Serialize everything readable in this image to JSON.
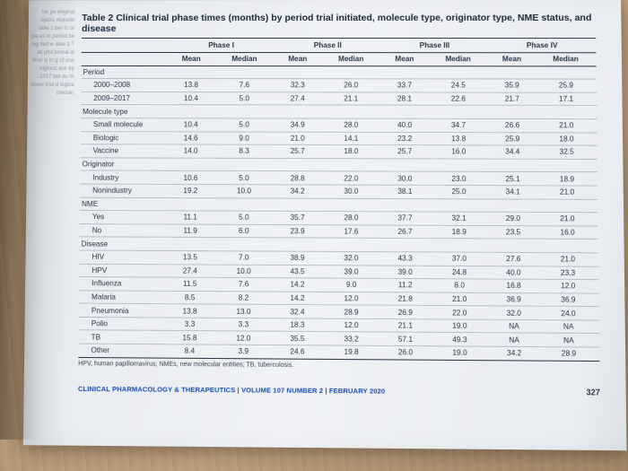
{
  "table": {
    "title": "Table 2 Clinical trial phase times (months) by period trial initiated, molecule type, originator type, NME status, and disease",
    "phase_headers": [
      "Phase I",
      "Phase II",
      "Phase III",
      "Phase IV"
    ],
    "sub_headers": [
      "Mean",
      "Median"
    ],
    "groups": [
      {
        "label": "Period",
        "rows": [
          {
            "label": "2000–2008",
            "vals": [
              "13.8",
              "7.6",
              "32.3",
              "26.0",
              "33.7",
              "24.5",
              "35.9",
              "25.9"
            ]
          },
          {
            "label": "2009–2017",
            "vals": [
              "10.4",
              "5.0",
              "27.4",
              "21.1",
              "28.1",
              "22.6",
              "21.7",
              "17.1"
            ]
          }
        ]
      },
      {
        "label": "Molecule type",
        "rows": [
          {
            "label": "Small molecule",
            "vals": [
              "10.4",
              "5.0",
              "34.9",
              "28.0",
              "40.0",
              "34.7",
              "26.6",
              "21.0"
            ]
          },
          {
            "label": "Biologic",
            "vals": [
              "14.6",
              "9.0",
              "21.0",
              "14.1",
              "23.2",
              "13.8",
              "25.9",
              "18.0"
            ]
          },
          {
            "label": "Vaccine",
            "vals": [
              "14.0",
              "8.3",
              "25.7",
              "18.0",
              "25.7",
              "16.0",
              "34.4",
              "32.5"
            ]
          }
        ]
      },
      {
        "label": "Originator",
        "rows": [
          {
            "label": "Industry",
            "vals": [
              "10.6",
              "5.0",
              "28.8",
              "22.0",
              "30.0",
              "23.0",
              "25.1",
              "18.9"
            ]
          },
          {
            "label": "Nonindustry",
            "vals": [
              "19.2",
              "10.0",
              "34.2",
              "30.0",
              "38.1",
              "25.0",
              "34.1",
              "21.0"
            ]
          }
        ]
      },
      {
        "label": "NME",
        "rows": [
          {
            "label": "Yes",
            "vals": [
              "11.1",
              "5.0",
              "35.7",
              "28.0",
              "37.7",
              "32.1",
              "29.0",
              "21.0"
            ]
          },
          {
            "label": "No",
            "vals": [
              "11.9",
              "6.0",
              "23.9",
              "17.6",
              "26.7",
              "18.9",
              "23.5",
              "16.0"
            ]
          }
        ]
      },
      {
        "label": "Disease",
        "rows": [
          {
            "label": "HIV",
            "vals": [
              "13.5",
              "7.0",
              "38.9",
              "32.0",
              "43.3",
              "37.0",
              "27.6",
              "21.0"
            ]
          },
          {
            "label": "HPV",
            "vals": [
              "27.4",
              "10.0",
              "43.5",
              "39.0",
              "39.0",
              "24.8",
              "40.0",
              "23.3"
            ]
          },
          {
            "label": "Influenza",
            "vals": [
              "11.5",
              "7.6",
              "14.2",
              "9.0",
              "11.2",
              "8.0",
              "16.8",
              "12.0"
            ]
          },
          {
            "label": "Malaria",
            "vals": [
              "8.5",
              "8.2",
              "14.2",
              "12.0",
              "21.8",
              "21.0",
              "36.9",
              "36.9"
            ]
          },
          {
            "label": "Pneumonia",
            "vals": [
              "13.8",
              "13.0",
              "32.4",
              "28.9",
              "26.9",
              "22.0",
              "32.0",
              "24.0"
            ]
          },
          {
            "label": "Polio",
            "vals": [
              "3.3",
              "3.3",
              "18.3",
              "12.0",
              "21.1",
              "19.0",
              "NA",
              "NA"
            ]
          },
          {
            "label": "TB",
            "vals": [
              "15.8",
              "12.0",
              "35.5",
              "33.2",
              "57.1",
              "49.3",
              "NA",
              "NA"
            ]
          },
          {
            "label": "Other",
            "vals": [
              "8.4",
              "3.9",
              "24.6",
              "19.8",
              "26.0",
              "19.0",
              "34.2",
              "28.9"
            ]
          }
        ]
      }
    ],
    "footnote": "HPV, human papillomavirus; NMEs, new molecular entities; TB, tuberculosis.",
    "style": {
      "title_fontsize_pt": 10.5,
      "cell_fontsize_pt": 8.2,
      "footnote_fontsize_pt": 7,
      "text_color": "#2a3745",
      "rule_color": "#b8c2cc",
      "heavy_rule_color": "#2a3745",
      "page_bg": "#eef0f4"
    }
  },
  "footer": {
    "journal": "CLINICAL PHARMACOLOGY & THERAPEUTICS",
    "issue": " | VOLUME 107 NUMBER 2 | FEBRUARY 2020",
    "page": "327",
    "journal_color": "#1a4db3"
  },
  "bleed_text": "for ph\noriginat\nbjects\nmonolin\n\nable 1\nber fo\nor pla\nes in\nperiod\nbe hig\nlied w\n\nable 1 T\nall pha\nproval\nal time\nls in g\nof one\nhighest\n\nase by\n-2017\nted du\n% lower\ntrial d\nlogica\nmedian"
}
